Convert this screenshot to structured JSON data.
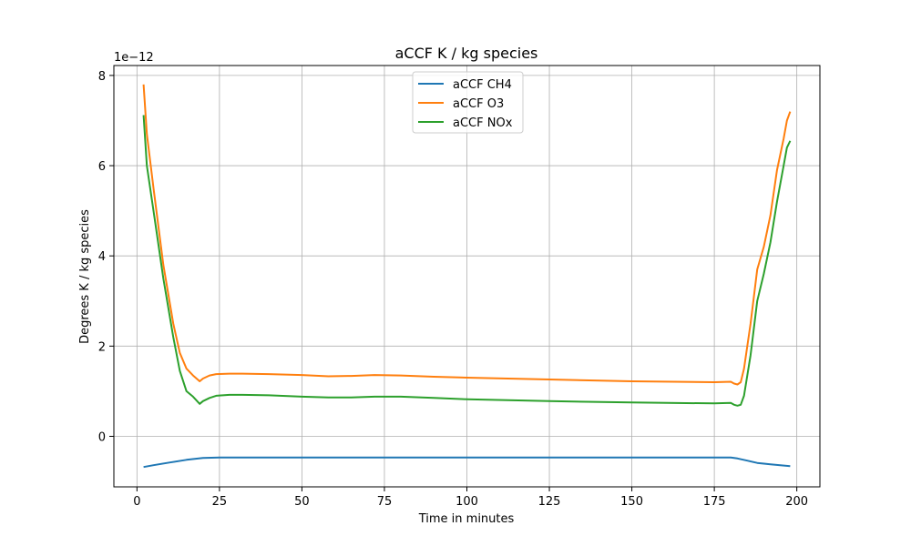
{
  "chart_data": {
    "type": "line",
    "title": "aCCF K / kg species",
    "xlabel": "Time in minutes",
    "ylabel": "Degrees K / kg species",
    "y_offset_label": "1e−12",
    "xlim": [
      -7,
      207
    ],
    "ylim": [
      -1.12,
      8.22
    ],
    "xticks": [
      0,
      25,
      50,
      75,
      100,
      125,
      150,
      175,
      200
    ],
    "yticks": [
      0,
      2,
      4,
      6,
      8
    ],
    "grid": true,
    "legend_position": "upper center",
    "series": [
      {
        "name": "aCCF CH4",
        "color": "#1f77b4",
        "x": [
          2,
          5,
          10,
          15,
          20,
          25,
          50,
          75,
          100,
          125,
          150,
          175,
          180,
          182,
          185,
          188,
          192,
          195,
          198
        ],
        "y": [
          -0.68,
          -0.64,
          -0.58,
          -0.52,
          -0.48,
          -0.47,
          -0.47,
          -0.47,
          -0.47,
          -0.47,
          -0.47,
          -0.47,
          -0.47,
          -0.49,
          -0.54,
          -0.59,
          -0.62,
          -0.64,
          -0.66
        ]
      },
      {
        "name": "aCCF O3",
        "color": "#ff7f0e",
        "x": [
          2,
          3,
          5,
          8,
          11,
          13,
          15,
          17,
          19,
          20,
          22,
          24,
          28,
          32,
          40,
          50,
          58,
          65,
          72,
          80,
          90,
          100,
          125,
          150,
          175,
          180,
          181,
          182,
          183,
          184,
          186,
          188,
          190,
          192,
          194,
          196,
          197,
          198
        ],
        "y": [
          7.8,
          6.7,
          5.5,
          3.8,
          2.5,
          1.85,
          1.5,
          1.35,
          1.22,
          1.28,
          1.35,
          1.38,
          1.39,
          1.39,
          1.38,
          1.36,
          1.33,
          1.34,
          1.36,
          1.35,
          1.32,
          1.3,
          1.26,
          1.22,
          1.2,
          1.21,
          1.17,
          1.15,
          1.2,
          1.5,
          2.5,
          3.7,
          4.2,
          4.9,
          5.9,
          6.6,
          7.0,
          7.2
        ]
      },
      {
        "name": "aCCF NOx",
        "color": "#2ca02c",
        "x": [
          2,
          3,
          5,
          8,
          11,
          13,
          15,
          17,
          19,
          20,
          22,
          24,
          28,
          32,
          40,
          50,
          58,
          65,
          72,
          80,
          90,
          100,
          125,
          150,
          175,
          180,
          181,
          182,
          183,
          184,
          186,
          188,
          190,
          192,
          194,
          196,
          197,
          198
        ],
        "y": [
          7.12,
          6.0,
          5.0,
          3.5,
          2.2,
          1.45,
          1.0,
          0.88,
          0.72,
          0.78,
          0.85,
          0.9,
          0.92,
          0.92,
          0.91,
          0.88,
          0.86,
          0.86,
          0.88,
          0.88,
          0.85,
          0.82,
          0.78,
          0.75,
          0.73,
          0.74,
          0.7,
          0.68,
          0.7,
          0.9,
          1.8,
          3.0,
          3.6,
          4.3,
          5.2,
          6.0,
          6.4,
          6.55
        ]
      }
    ]
  }
}
